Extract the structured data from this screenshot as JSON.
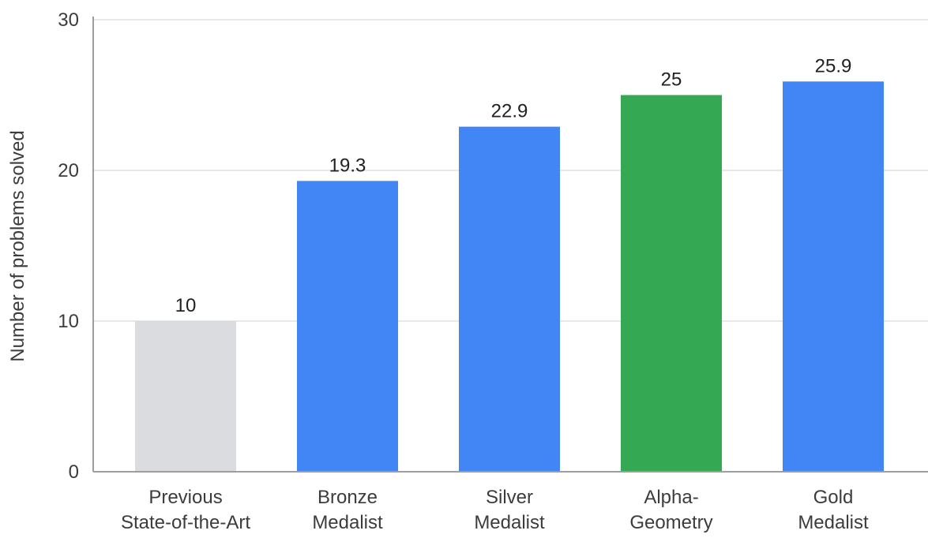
{
  "chart_data": {
    "type": "bar",
    "title": "",
    "xlabel": "",
    "ylabel": "Number of problems solved",
    "ylim": [
      0,
      30
    ],
    "yticks": [
      0,
      10,
      20,
      30
    ],
    "grid": true,
    "categories": [
      [
        "Previous",
        "State-of-the-Art"
      ],
      [
        "Bronze",
        "Medalist"
      ],
      [
        "Silver",
        "Medalist"
      ],
      [
        "Alpha-",
        "Geometry"
      ],
      [
        "Gold",
        "Medalist"
      ]
    ],
    "values": [
      10,
      19.3,
      22.9,
      25,
      25.9
    ],
    "value_labels": [
      "10",
      "19.3",
      "22.9",
      "25",
      "25.9"
    ],
    "bar_colors": [
      "#dadce0",
      "#4285f4",
      "#4285f4",
      "#34a853",
      "#4285f4"
    ]
  },
  "colors": {
    "gridline": "#e0e0e0",
    "axis": "#9e9e9e"
  }
}
